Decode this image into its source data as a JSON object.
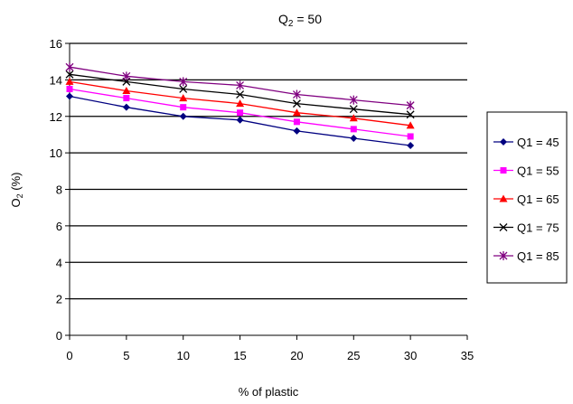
{
  "chart_data": {
    "type": "line",
    "title": "Q2 = 50",
    "title_parts": {
      "base": "Q",
      "subscript": "2",
      "rest": " = 50"
    },
    "xlabel": "% of plastic",
    "ylabel": "O2 (%)",
    "ylabel_parts": {
      "base": "O",
      "subscript": "2",
      "rest": " (%)"
    },
    "xlim": [
      0,
      35
    ],
    "ylim": [
      0,
      16
    ],
    "xticks": [
      0,
      5,
      10,
      15,
      20,
      25,
      30,
      35
    ],
    "yticks": [
      0,
      2,
      4,
      6,
      8,
      10,
      12,
      14,
      16
    ],
    "grid": "horizontal",
    "legend_position": "right",
    "x": [
      0,
      5,
      10,
      15,
      20,
      25,
      30
    ],
    "series": [
      {
        "name": "Q1 = 45",
        "color": "#000080",
        "marker": "diamond",
        "values": [
          13.1,
          12.5,
          12.0,
          11.8,
          11.2,
          10.8,
          10.4
        ]
      },
      {
        "name": "Q1 = 55",
        "color": "#ff00ff",
        "marker": "square",
        "values": [
          13.5,
          13.0,
          12.5,
          12.2,
          11.7,
          11.3,
          10.9
        ]
      },
      {
        "name": "Q1 = 65",
        "color": "#ff0000",
        "marker": "triangle",
        "values": [
          13.9,
          13.4,
          13.0,
          12.7,
          12.2,
          11.9,
          11.5
        ]
      },
      {
        "name": "Q1 = 75",
        "color": "#000000",
        "marker": "x",
        "values": [
          14.3,
          13.9,
          13.5,
          13.2,
          12.7,
          12.4,
          12.1
        ]
      },
      {
        "name": "Q1 = 85",
        "color": "#800080",
        "marker": "star",
        "values": [
          14.7,
          14.2,
          13.9,
          13.7,
          13.2,
          12.9,
          12.6
        ]
      }
    ]
  }
}
